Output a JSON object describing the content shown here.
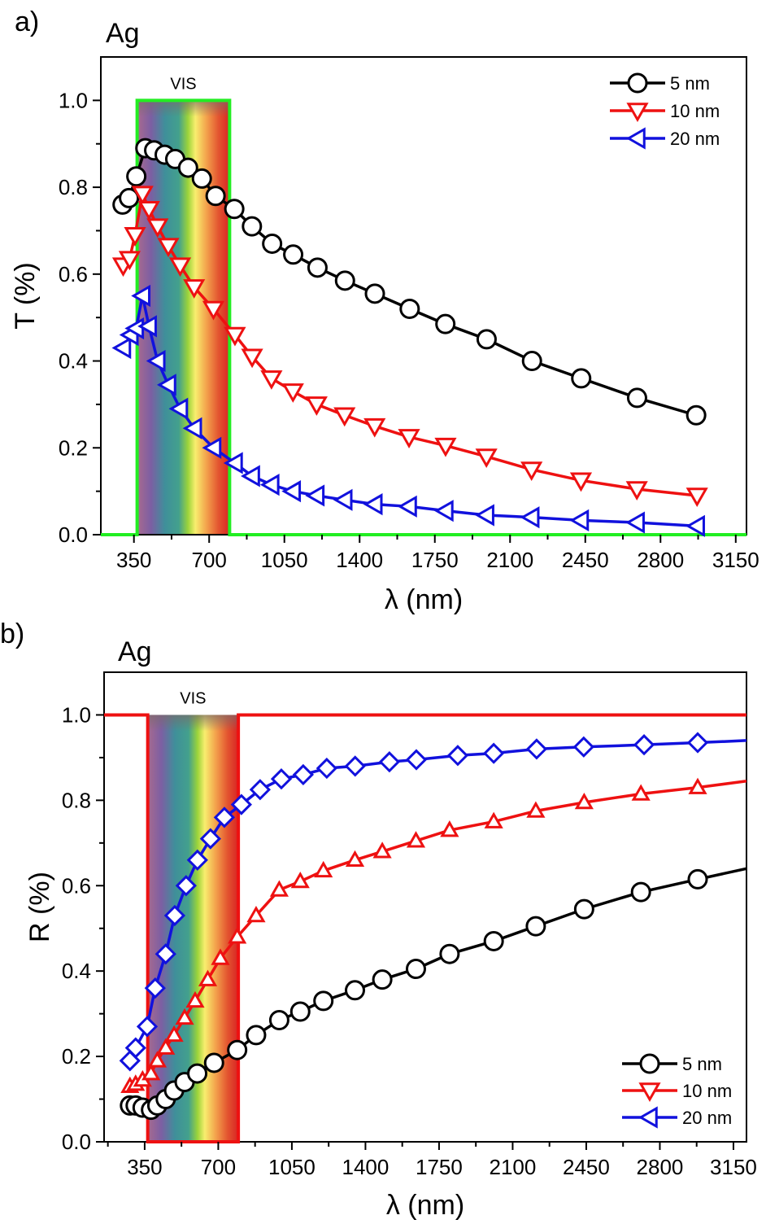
{
  "chart_data": [
    {
      "type": "line",
      "panel_label": "a)",
      "title": "Ag",
      "xlabel": "λ (nm)",
      "ylabel": "T (%)",
      "xlim": [
        196,
        3200
      ],
      "ylim": [
        0,
        1.1
      ],
      "xticks": [
        350,
        700,
        1050,
        1400,
        1750,
        2100,
        2450,
        2800,
        3150
      ],
      "yticks": [
        0.0,
        0.2,
        0.4,
        0.6,
        0.8,
        1.0
      ],
      "ytick_labels": [
        "0.0",
        "0.2",
        "0.4",
        "0.6",
        "0.8",
        "1.0"
      ],
      "grid": false,
      "legend_position": "top-right",
      "vis_band": {
        "label": "VIS",
        "x_range": [
          380,
          780
        ],
        "y_top": 1.0,
        "outline": {
          "color": "#22ee22",
          "baseline_y": 0.0
        }
      },
      "series": [
        {
          "name": "5 nm",
          "color": "#000000",
          "marker": "circle",
          "x": [
            297,
            327,
            361,
            403,
            444,
            493,
            542,
            602,
            666,
            730,
            817,
            899,
            993,
            1091,
            1204,
            1332,
            1471,
            1633,
            1799,
            1991,
            2202,
            2431,
            2691,
            2966
          ],
          "y": [
            0.76,
            0.775,
            0.825,
            0.89,
            0.885,
            0.875,
            0.865,
            0.845,
            0.82,
            0.78,
            0.75,
            0.71,
            0.67,
            0.645,
            0.615,
            0.585,
            0.555,
            0.52,
            0.485,
            0.45,
            0.4,
            0.36,
            0.315,
            0.275
          ]
        },
        {
          "name": "10 nm",
          "color": "#ee1111",
          "marker": "triangle-down",
          "x": [
            300,
            330,
            355,
            390,
            420,
            460,
            510,
            565,
            630,
            720,
            820,
            900,
            990,
            1090,
            1200,
            1330,
            1470,
            1630,
            1800,
            1990,
            2200,
            2430,
            2690,
            2970
          ],
          "y": [
            0.62,
            0.635,
            0.69,
            0.785,
            0.75,
            0.71,
            0.665,
            0.62,
            0.57,
            0.52,
            0.46,
            0.41,
            0.36,
            0.33,
            0.3,
            0.275,
            0.25,
            0.225,
            0.205,
            0.18,
            0.15,
            0.125,
            0.105,
            0.09
          ]
        },
        {
          "name": "20 nm",
          "color": "#1111dd",
          "marker": "triangle-left",
          "x": [
            300,
            335,
            360,
            390,
            420,
            460,
            510,
            565,
            630,
            720,
            820,
            900,
            990,
            1090,
            1200,
            1330,
            1470,
            1630,
            1800,
            1990,
            2200,
            2430,
            2690,
            2970
          ],
          "y": [
            0.43,
            0.46,
            0.475,
            0.55,
            0.48,
            0.4,
            0.345,
            0.29,
            0.245,
            0.2,
            0.165,
            0.135,
            0.115,
            0.1,
            0.09,
            0.08,
            0.07,
            0.065,
            0.055,
            0.045,
            0.04,
            0.033,
            0.028,
            0.02
          ]
        }
      ]
    },
    {
      "type": "line",
      "panel_label": "b)",
      "title": "Ag",
      "xlabel": "λ (nm)",
      "ylabel": "R (%)",
      "xlim": [
        157,
        3212
      ],
      "ylim": [
        0,
        1.1
      ],
      "xticks": [
        350,
        700,
        1050,
        1400,
        1750,
        2100,
        2450,
        2800,
        3150
      ],
      "yticks": [
        0.0,
        0.2,
        0.4,
        0.6,
        0.8,
        1.0
      ],
      "ytick_labels": [
        "0.0",
        "0.2",
        "0.4",
        "0.6",
        "0.8",
        "1.0"
      ],
      "grid": false,
      "legend_position": "bottom-right",
      "vis_band": {
        "label": "VIS",
        "x_range": [
          380,
          780
        ],
        "y_top": 1.0,
        "outline": {
          "color": "#ee1111",
          "baseline_y": 1.0
        }
      },
      "series": [
        {
          "name": "5 nm",
          "color": "#000000",
          "marker": "circle",
          "x": [
            280,
            307,
            340,
            380,
            410,
            450,
            490,
            540,
            600,
            680,
            790,
            880,
            990,
            1090,
            1200,
            1350,
            1480,
            1640,
            1800,
            2010,
            2210,
            2440,
            2710,
            2980,
            3212
          ],
          "y": [
            0.085,
            0.085,
            0.08,
            0.075,
            0.085,
            0.1,
            0.12,
            0.14,
            0.16,
            0.185,
            0.215,
            0.25,
            0.285,
            0.305,
            0.33,
            0.355,
            0.38,
            0.405,
            0.44,
            0.47,
            0.505,
            0.545,
            0.585,
            0.615,
            0.64
          ],
          "marker_count": 24
        },
        {
          "name": "10 nm",
          "color": "#ee1111",
          "marker": "triangle-up",
          "x": [
            280,
            307,
            340,
            380,
            410,
            450,
            490,
            540,
            590,
            650,
            710,
            790,
            880,
            990,
            1090,
            1200,
            1350,
            1480,
            1640,
            1800,
            2010,
            2210,
            2440,
            2710,
            2980,
            3212
          ],
          "y": [
            0.13,
            0.135,
            0.145,
            0.16,
            0.19,
            0.22,
            0.25,
            0.29,
            0.33,
            0.38,
            0.43,
            0.48,
            0.53,
            0.59,
            0.61,
            0.635,
            0.66,
            0.68,
            0.705,
            0.73,
            0.75,
            0.775,
            0.795,
            0.815,
            0.83,
            0.845
          ],
          "marker_count": 25
        },
        {
          "name": "20 nm",
          "color": "#1111dd",
          "marker": "diamond",
          "x": [
            280,
            307,
            362,
            400,
            450,
            493,
            547,
            601,
            663,
            729,
            810,
            899,
            1000,
            1104,
            1216,
            1351,
            1514,
            1642,
            1839,
            2010,
            2214,
            2438,
            2725,
            2980,
            3212
          ],
          "y": [
            0.19,
            0.22,
            0.27,
            0.36,
            0.44,
            0.53,
            0.6,
            0.66,
            0.71,
            0.76,
            0.79,
            0.825,
            0.85,
            0.86,
            0.875,
            0.88,
            0.89,
            0.895,
            0.905,
            0.91,
            0.92,
            0.925,
            0.93,
            0.935,
            0.94
          ],
          "marker_count": 24
        }
      ],
      "legend_markers": [
        "circle",
        "triangle-down",
        "triangle-left"
      ]
    }
  ]
}
